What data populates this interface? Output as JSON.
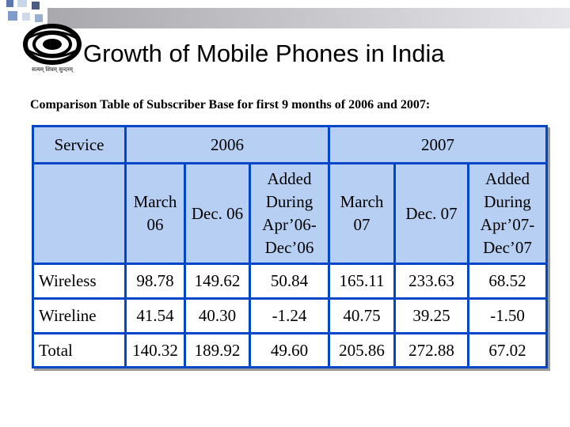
{
  "slide": {
    "title": "Growth of Mobile Phones in India",
    "subtitle": "Comparison Table of Subscriber Base for first 9 months of 2006 and 2007:"
  },
  "logo": {
    "mark_text": "दूरदर्शन",
    "caption": "सत्यम् शिवम् सुन्दरम्"
  },
  "table": {
    "service_header": "Service",
    "year_2006": "2006",
    "year_2007": "2007",
    "sub_headers": [
      [
        "March",
        "06"
      ],
      [
        "Dec. 06"
      ],
      [
        "Added",
        "During",
        "Apr’06-",
        "Dec’06"
      ],
      [
        "March",
        "07"
      ],
      [
        "Dec. 07"
      ],
      [
        "Added",
        "During",
        "Apr’07-",
        "Dec’07"
      ]
    ],
    "rows": [
      {
        "service": "Wireless",
        "values": [
          "98.78",
          "149.62",
          "50.84",
          "165.11",
          "233.63",
          "68.52"
        ]
      },
      {
        "service": "Wireline",
        "values": [
          "41.54",
          "40.30",
          "-1.24",
          "40.75",
          "39.25",
          "-1.50"
        ]
      },
      {
        "service": "Total",
        "values": [
          "140.32",
          "189.92",
          "49.60",
          "205.86",
          "272.88",
          "67.02"
        ]
      }
    ]
  },
  "colors": {
    "grid": "#0046c8",
    "header_fill": "#b7cff3",
    "body_fill": "#ffffff"
  }
}
